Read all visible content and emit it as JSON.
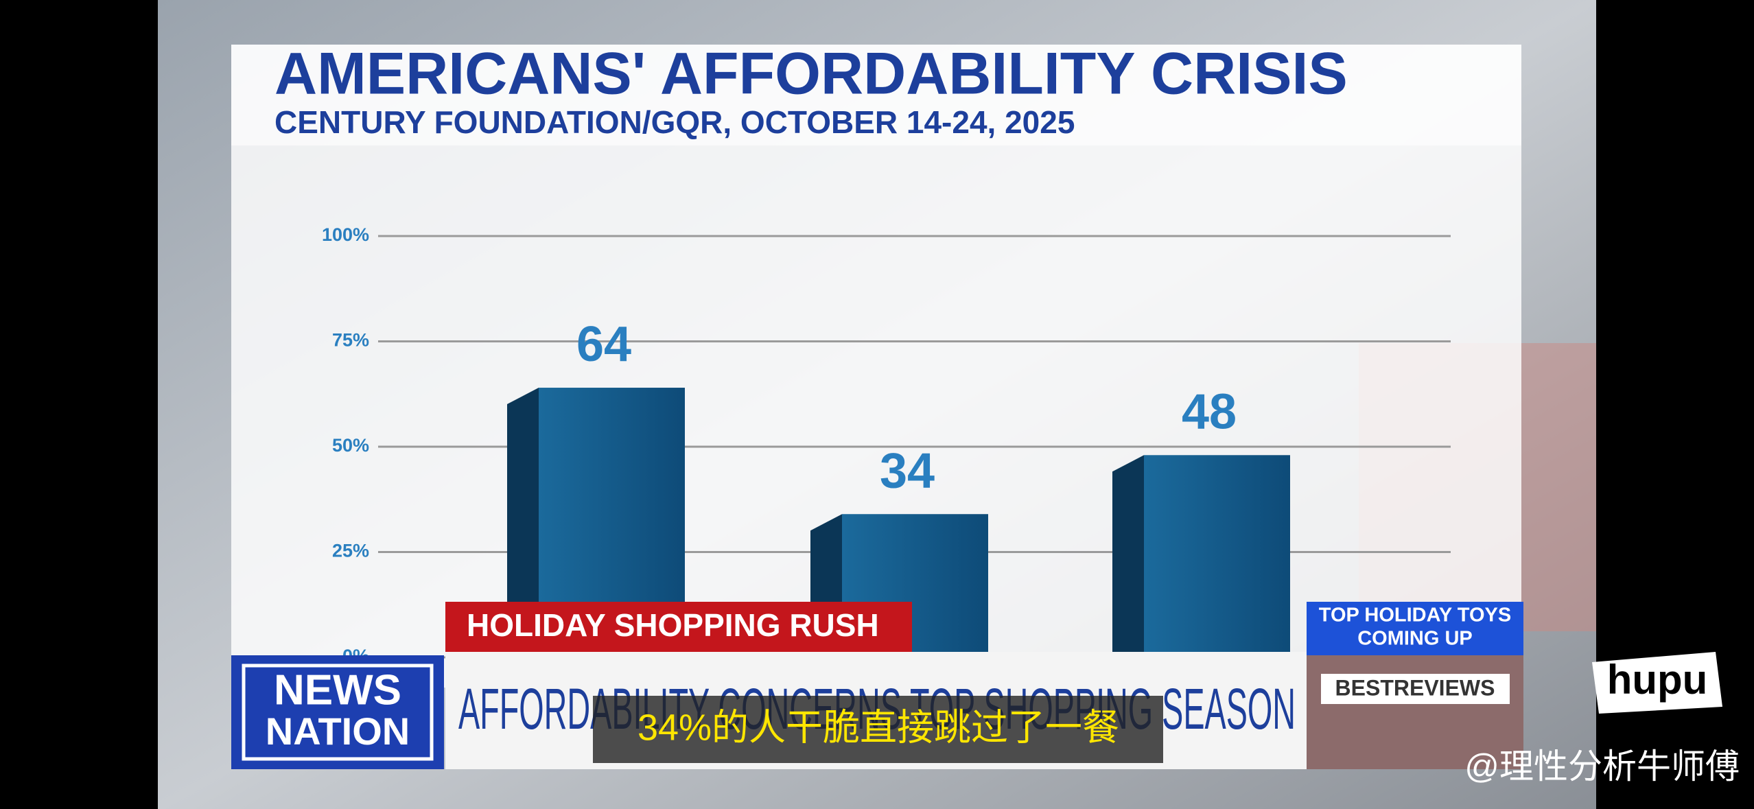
{
  "chart_data": {
    "type": "bar",
    "title": "AMERICANS' AFFORDABILITY CRISIS",
    "subtitle": "CENTURY FOUNDATION/GQR, OCTOBER 14-24, 2025",
    "categories": [
      null,
      null,
      null
    ],
    "values": [
      64,
      34,
      48
    ],
    "color": "#155a8a",
    "ylim": [
      0,
      100
    ],
    "yticks": [
      {
        "value": 0,
        "label": "0%"
      },
      {
        "value": 25,
        "label": "25%"
      },
      {
        "value": 50,
        "label": "50%"
      },
      {
        "value": 75,
        "label": "75%"
      },
      {
        "value": 100,
        "label": "100%"
      }
    ],
    "grid": true
  },
  "overlay": {
    "banner": "HOLIDAY SHOPPING RUSH",
    "headline": "AFFORDABILITY CONCERNS TOP SHOPPING SEASON",
    "logo": [
      "NEWS",
      "NATION"
    ],
    "promo": [
      "TOP HOLIDAY TOYS",
      "COMING UP",
      "BESTREVIEWS"
    ],
    "caption": "34%的人干脆直接跳过了一餐",
    "brand": "hupu",
    "watermark": "@理性分析牛师傅"
  }
}
